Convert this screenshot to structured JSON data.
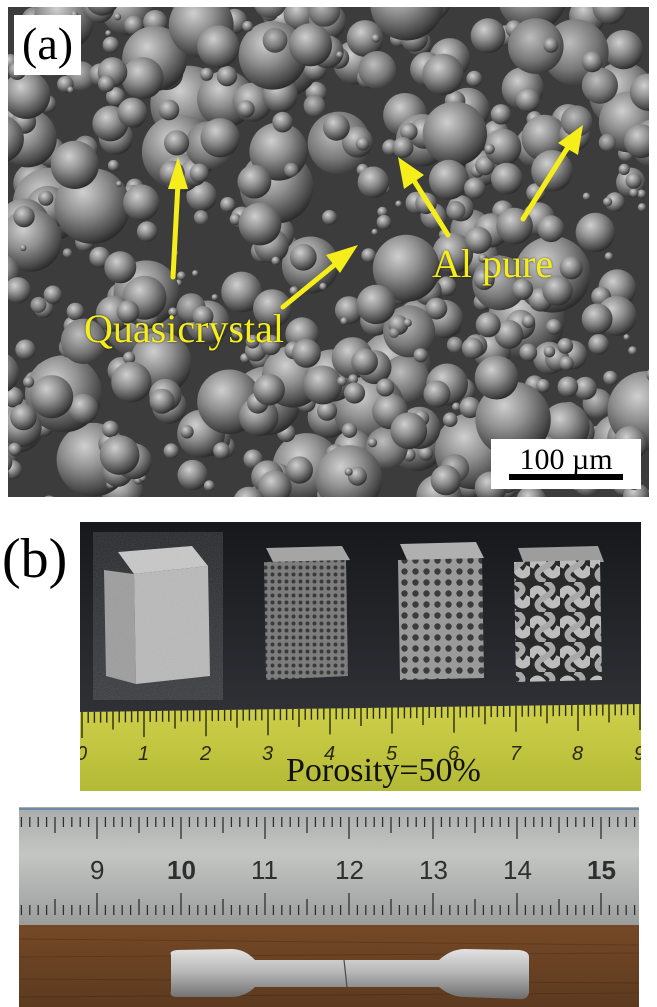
{
  "panel_a": {
    "label": "(a)",
    "annotation_quasicrystal": "Quasicrystal",
    "annotation_al": "Al pure",
    "scale_bar": "100 µm",
    "arrow_color": "#f5ee1a"
  },
  "panel_b": {
    "label": "(b)",
    "porosity": "Porosity=50%",
    "ruler_ticks": [
      "0",
      "1",
      "2",
      "3",
      "4",
      "5",
      "6",
      "7",
      "8",
      "9"
    ]
  },
  "panel_c": {
    "ruler_ticks": [
      "9",
      "10",
      "11",
      "12",
      "13",
      "14",
      "15"
    ]
  }
}
